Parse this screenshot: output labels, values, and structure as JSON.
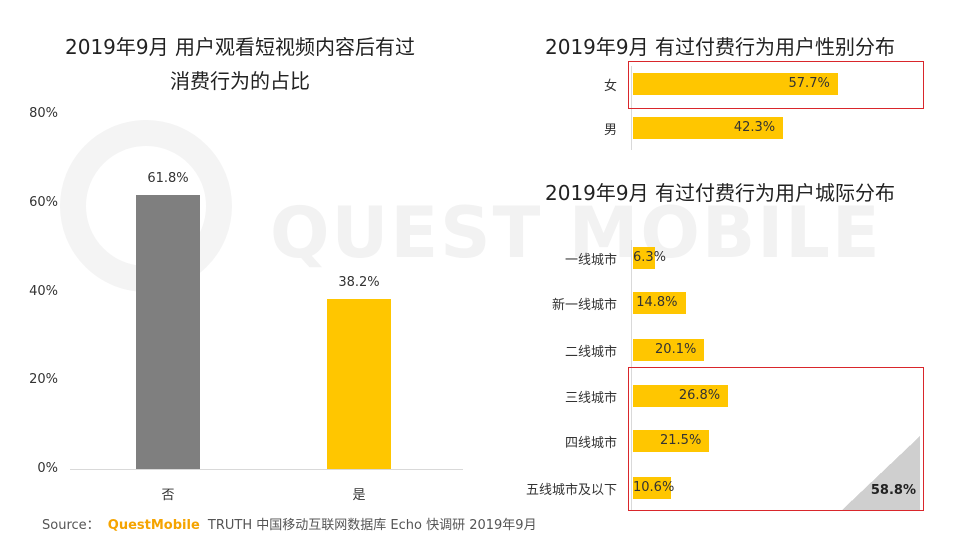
{
  "watermark": "QUEST MOBILE",
  "source": {
    "prefix": "Source：",
    "brand": "QuestMobile",
    "rest": "TRUTH 中国移动互联网数据库 Echo 快调研 2019年9月"
  },
  "highlight_total": "58.8%",
  "colors": {
    "gray": "#7f7f7f",
    "yellow": "#ffc600",
    "red": "#d9262b"
  },
  "chart_data": [
    {
      "type": "bar",
      "title": "2019年9月 用户观看短视频内容后有过消费行为的占比",
      "title_lines": [
        "2019年9月 用户观看短视频内容后有过",
        "消费行为的占比"
      ],
      "categories": [
        "否",
        "是"
      ],
      "values": [
        61.8,
        38.2
      ],
      "labels": [
        "61.8%",
        "38.2%"
      ],
      "yticks": [
        "0%",
        "20%",
        "40%",
        "60%",
        "80%"
      ],
      "ylim": [
        0,
        80
      ],
      "xlabel": "",
      "ylabel": ""
    },
    {
      "type": "bar",
      "orientation": "horizontal",
      "title": "2019年9月 有过付费行为用户性别分布",
      "categories": [
        "女",
        "男"
      ],
      "values": [
        57.7,
        42.3
      ],
      "labels": [
        "57.7%",
        "42.3%"
      ]
    },
    {
      "type": "bar",
      "orientation": "horizontal",
      "title": "2019年9月 有过付费行为用户城际分布",
      "categories": [
        "一线城市",
        "新一线城市",
        "二线城市",
        "三线城市",
        "四线城市",
        "五线城市及以下"
      ],
      "values": [
        6.3,
        14.8,
        20.1,
        26.8,
        21.5,
        10.6
      ],
      "labels": [
        "6.3%",
        "14.8%",
        "20.1%",
        "26.8%",
        "21.5%",
        "10.6%"
      ]
    }
  ]
}
